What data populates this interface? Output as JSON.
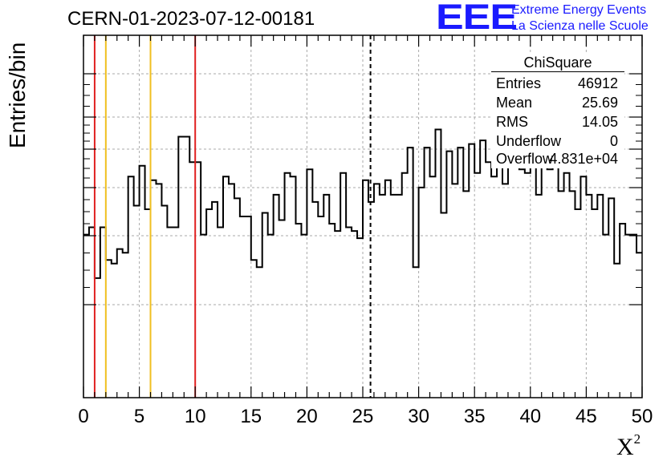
{
  "header": {
    "run_title": "CERN-01-2023-07-12-00181"
  },
  "logo": {
    "mark": "EEE",
    "line1": "Extreme Energy Events",
    "line2": "La Scienza nelle Scuole",
    "color": "#1a1aff"
  },
  "chart_data": {
    "type": "bar",
    "title": "",
    "xlabel": "X",
    "xlabel_superscript": "2",
    "ylabel": "Entries/bin",
    "xlim": [
      0,
      50
    ],
    "ylim": [
      0,
      1
    ],
    "x_ticks": [
      "0",
      "5",
      "10",
      "15",
      "20",
      "25",
      "30",
      "35",
      "40",
      "45",
      "50"
    ],
    "grid": true,
    "bin_width": 0.5,
    "values": [
      0.45,
      0.47,
      0.33,
      0.47,
      0.38,
      0.37,
      0.41,
      0.4,
      0.61,
      0.53,
      0.64,
      0.52,
      0.6,
      0.59,
      0.53,
      0.47,
      0.47,
      0.72,
      0.72,
      0.65,
      0.65,
      0.45,
      0.52,
      0.54,
      0.47,
      0.61,
      0.59,
      0.55,
      0.5,
      0.5,
      0.38,
      0.36,
      0.51,
      0.45,
      0.56,
      0.49,
      0.62,
      0.61,
      0.48,
      0.45,
      0.63,
      0.54,
      0.5,
      0.56,
      0.48,
      0.46,
      0.62,
      0.47,
      0.46,
      0.44,
      0.6,
      0.54,
      0.59,
      0.56,
      0.6,
      0.56,
      0.56,
      0.62,
      0.69,
      0.36,
      0.58,
      0.69,
      0.61,
      0.74,
      0.51,
      0.68,
      0.59,
      0.69,
      0.57,
      0.7,
      0.62,
      0.71,
      0.65,
      0.61,
      0.68,
      0.59,
      0.69,
      0.71,
      0.63,
      0.62,
      0.71,
      0.56,
      0.69,
      0.63,
      0.68,
      0.57,
      0.62,
      0.57,
      0.52,
      0.61,
      0.56,
      0.52,
      0.56,
      0.45,
      0.55,
      0.37,
      0.48,
      0.45,
      0.45,
      0.4
    ],
    "vertical_lines": [
      {
        "x": 1,
        "color": "#e02020",
        "style": "solid"
      },
      {
        "x": 2,
        "color": "#f0c020",
        "style": "solid"
      },
      {
        "x": 6,
        "color": "#f0c020",
        "style": "solid"
      },
      {
        "x": 10,
        "color": "#e02020",
        "style": "solid"
      },
      {
        "x": 25.69,
        "color": "#000000",
        "style": "dashed"
      }
    ]
  },
  "stats_box": {
    "title": "ChiSquare",
    "rows": [
      {
        "label": "Entries",
        "value": "46912"
      },
      {
        "label": "Mean",
        "value": "25.69"
      },
      {
        "label": "RMS",
        "value": "14.05"
      },
      {
        "label": "Underflow",
        "value": "0"
      },
      {
        "label": "Overflow",
        "value": "4.831e+04"
      }
    ]
  }
}
